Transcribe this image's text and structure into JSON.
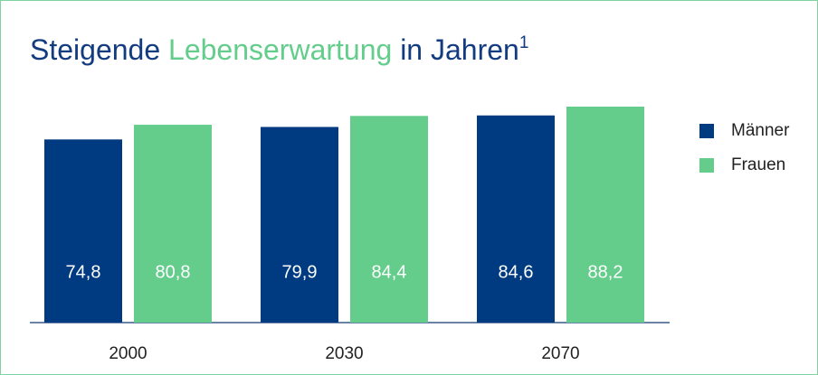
{
  "chart_data": {
    "type": "bar",
    "title_parts": [
      "Steigende",
      "Lebenserwartung",
      "in Jahren",
      "1"
    ],
    "categories": [
      "2000",
      "2030",
      "2070"
    ],
    "series": [
      {
        "name": "Männer",
        "color": "#003a80",
        "values": [
          74.8,
          79.9,
          84.6
        ],
        "value_labels": [
          "74,8",
          "79,9",
          "84,6"
        ]
      },
      {
        "name": "Frauen",
        "color": "#64cd8c",
        "values": [
          80.8,
          84.4,
          88.2
        ],
        "value_labels": [
          "80,8",
          "84,4",
          "88,2"
        ]
      }
    ],
    "legend": "right"
  }
}
